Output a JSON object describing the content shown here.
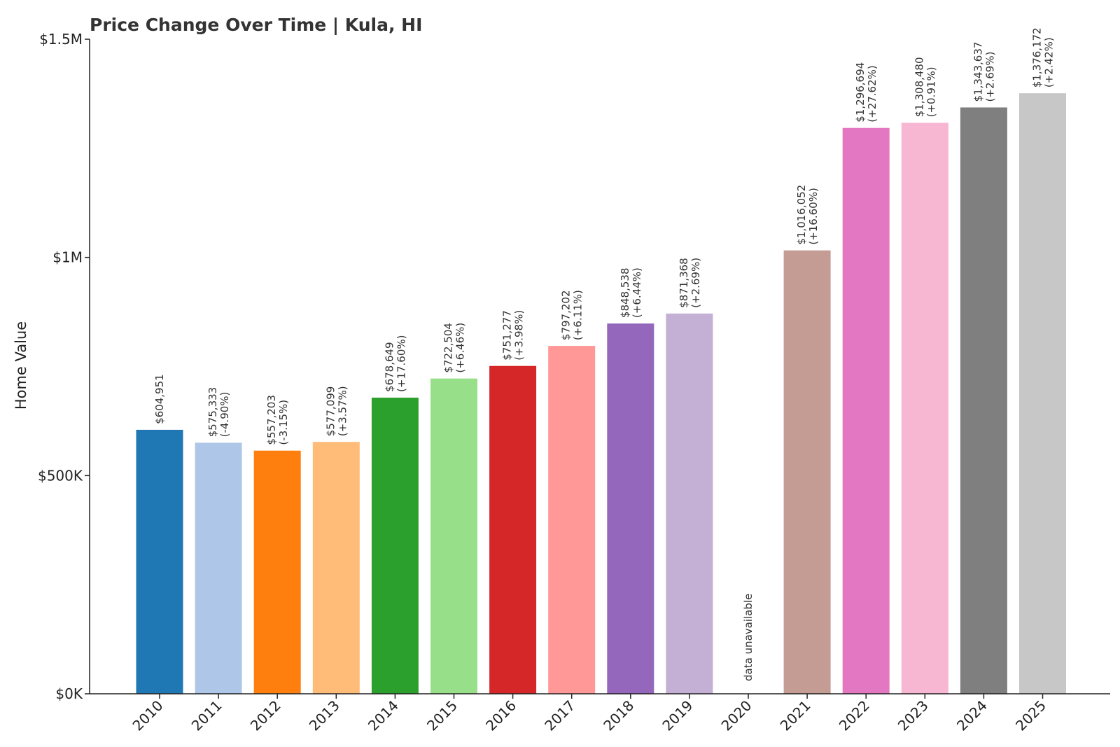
{
  "chart_data": {
    "type": "bar",
    "title": "Price Change Over Time | Kula, HI",
    "ylabel": "Home Value",
    "ylim": [
      0,
      1500000
    ],
    "yticks": [
      {
        "value": 0,
        "label": "$0K"
      },
      {
        "value": 500000,
        "label": "$500K"
      },
      {
        "value": 1000000,
        "label": "$1M"
      },
      {
        "value": 1500000,
        "label": "$1.5M"
      }
    ],
    "grid": false,
    "bars": [
      {
        "year": "2010",
        "value": 604951,
        "label": "$604,951",
        "change": "",
        "color": "#1f77b4"
      },
      {
        "year": "2011",
        "value": 575333,
        "label": "$575,333",
        "change": "(-4.90%)",
        "color": "#aec7e8"
      },
      {
        "year": "2012",
        "value": 557203,
        "label": "$557,203",
        "change": "(-3.15%)",
        "color": "#ff7f0e"
      },
      {
        "year": "2013",
        "value": 577099,
        "label": "$577,099",
        "change": "(+3.57%)",
        "color": "#ffbb78"
      },
      {
        "year": "2014",
        "value": 678649,
        "label": "$678,649",
        "change": "(+17.60%)",
        "color": "#2ca02c"
      },
      {
        "year": "2015",
        "value": 722504,
        "label": "$722,504",
        "change": "(+6.46%)",
        "color": "#98df8a"
      },
      {
        "year": "2016",
        "value": 751277,
        "label": "$751,277",
        "change": "(+3.98%)",
        "color": "#d62728"
      },
      {
        "year": "2017",
        "value": 797202,
        "label": "$797,202",
        "change": "(+6.11%)",
        "color": "#ff9896"
      },
      {
        "year": "2018",
        "value": 848538,
        "label": "$848,538",
        "change": "(+6.44%)",
        "color": "#9467bd"
      },
      {
        "year": "2019",
        "value": 871368,
        "label": "$871,368",
        "change": "(+2.69%)",
        "color": "#c5b0d5"
      },
      {
        "year": "2020",
        "value": null,
        "label": "data unavailable",
        "change": "",
        "color": ""
      },
      {
        "year": "2021",
        "value": 1016052,
        "label": "$1,016,052",
        "change": "(+16.60%)",
        "color": "#c49c94"
      },
      {
        "year": "2022",
        "value": 1296694,
        "label": "$1,296,694",
        "change": "(+27.62%)",
        "color": "#e377c2"
      },
      {
        "year": "2023",
        "value": 1308480,
        "label": "$1,308,480",
        "change": "(+0.91%)",
        "color": "#f7b6d2"
      },
      {
        "year": "2024",
        "value": 1343637,
        "label": "$1,343,637",
        "change": "(+2.69%)",
        "color": "#7f7f7f"
      },
      {
        "year": "2025",
        "value": 1376172,
        "label": "$1,376,172",
        "change": "(+2.42%)",
        "color": "#c7c7c7"
      }
    ]
  }
}
